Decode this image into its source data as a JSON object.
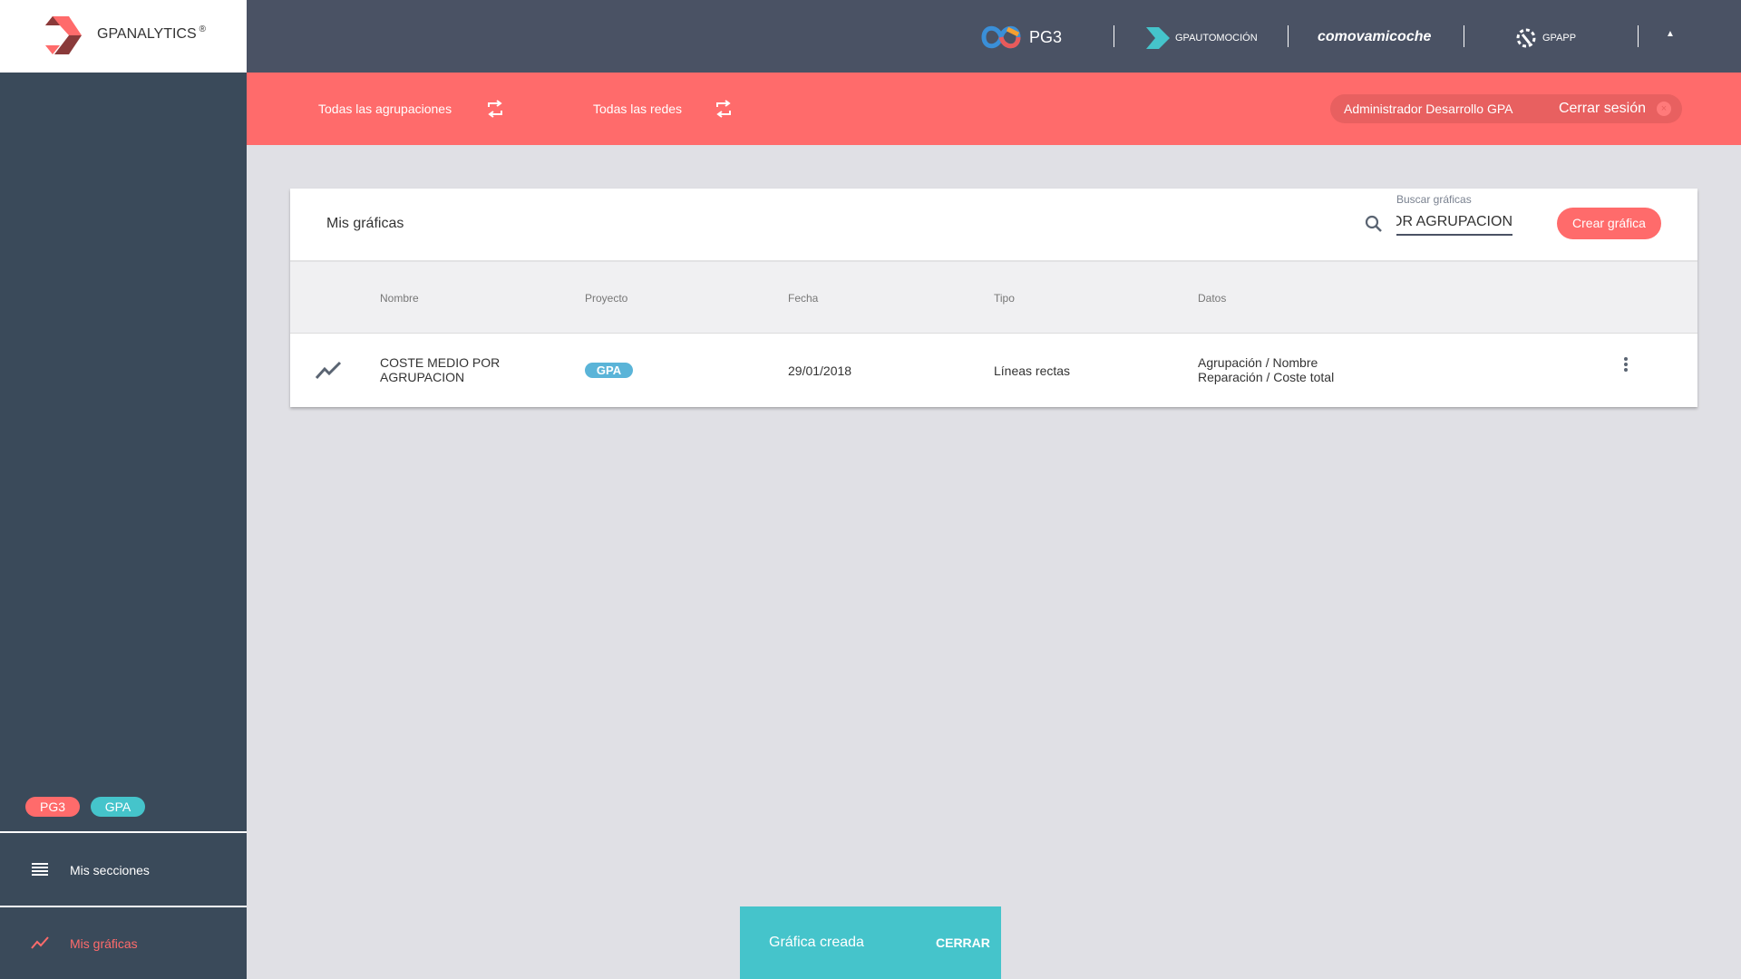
{
  "brand": {
    "logo_text": "GPANALYTICS",
    "registered": "®"
  },
  "topbar": {
    "apps": [
      "PG3",
      "GPAUTOMOCIÓN",
      "comovamicoche",
      "GPAPP"
    ],
    "collapse_icon": "caret-up-icon"
  },
  "filters": {
    "groupings": "Todas las agrupaciones",
    "networks": "Todas las redes",
    "swap_icon": "swap-icon"
  },
  "user": {
    "name": "Administrador Desarrollo GPA",
    "logout": "Cerrar sesión"
  },
  "sidebar": {
    "tags": [
      {
        "label": "PG3",
        "color": "#ff6b6b"
      },
      {
        "label": "GPA",
        "color": "#45c4cb"
      }
    ],
    "items": [
      {
        "label": "Mis secciones",
        "icon": "menu-icon",
        "active": false
      },
      {
        "label": "Mis gráficas",
        "icon": "trending-icon",
        "active": true
      }
    ]
  },
  "main": {
    "title": "Mis gráficas",
    "search": {
      "label": "Buscar gráficas",
      "value": "OR AGRUPACION"
    },
    "create_label": "Crear gráfica",
    "columns": [
      "Nombre",
      "Proyecto",
      "Fecha",
      "Tipo",
      "Datos"
    ],
    "rows": [
      {
        "name_line1": "COSTE MEDIO POR",
        "name_line2": "AGRUPACION",
        "project": "GPA",
        "date": "29/01/2018",
        "type": "Líneas rectas",
        "data_line1": "Agrupación / Nombre",
        "data_line2": "Reparación / Coste total"
      }
    ]
  },
  "snackbar": {
    "message": "Gráfica creada",
    "action": "CERRAR"
  },
  "colors": {
    "accent": "#ff6b6b",
    "teal": "#45c4cb",
    "topbar": "#4a5264",
    "sidebar": "#3a4a5a",
    "badge": "#5ab4d8"
  }
}
